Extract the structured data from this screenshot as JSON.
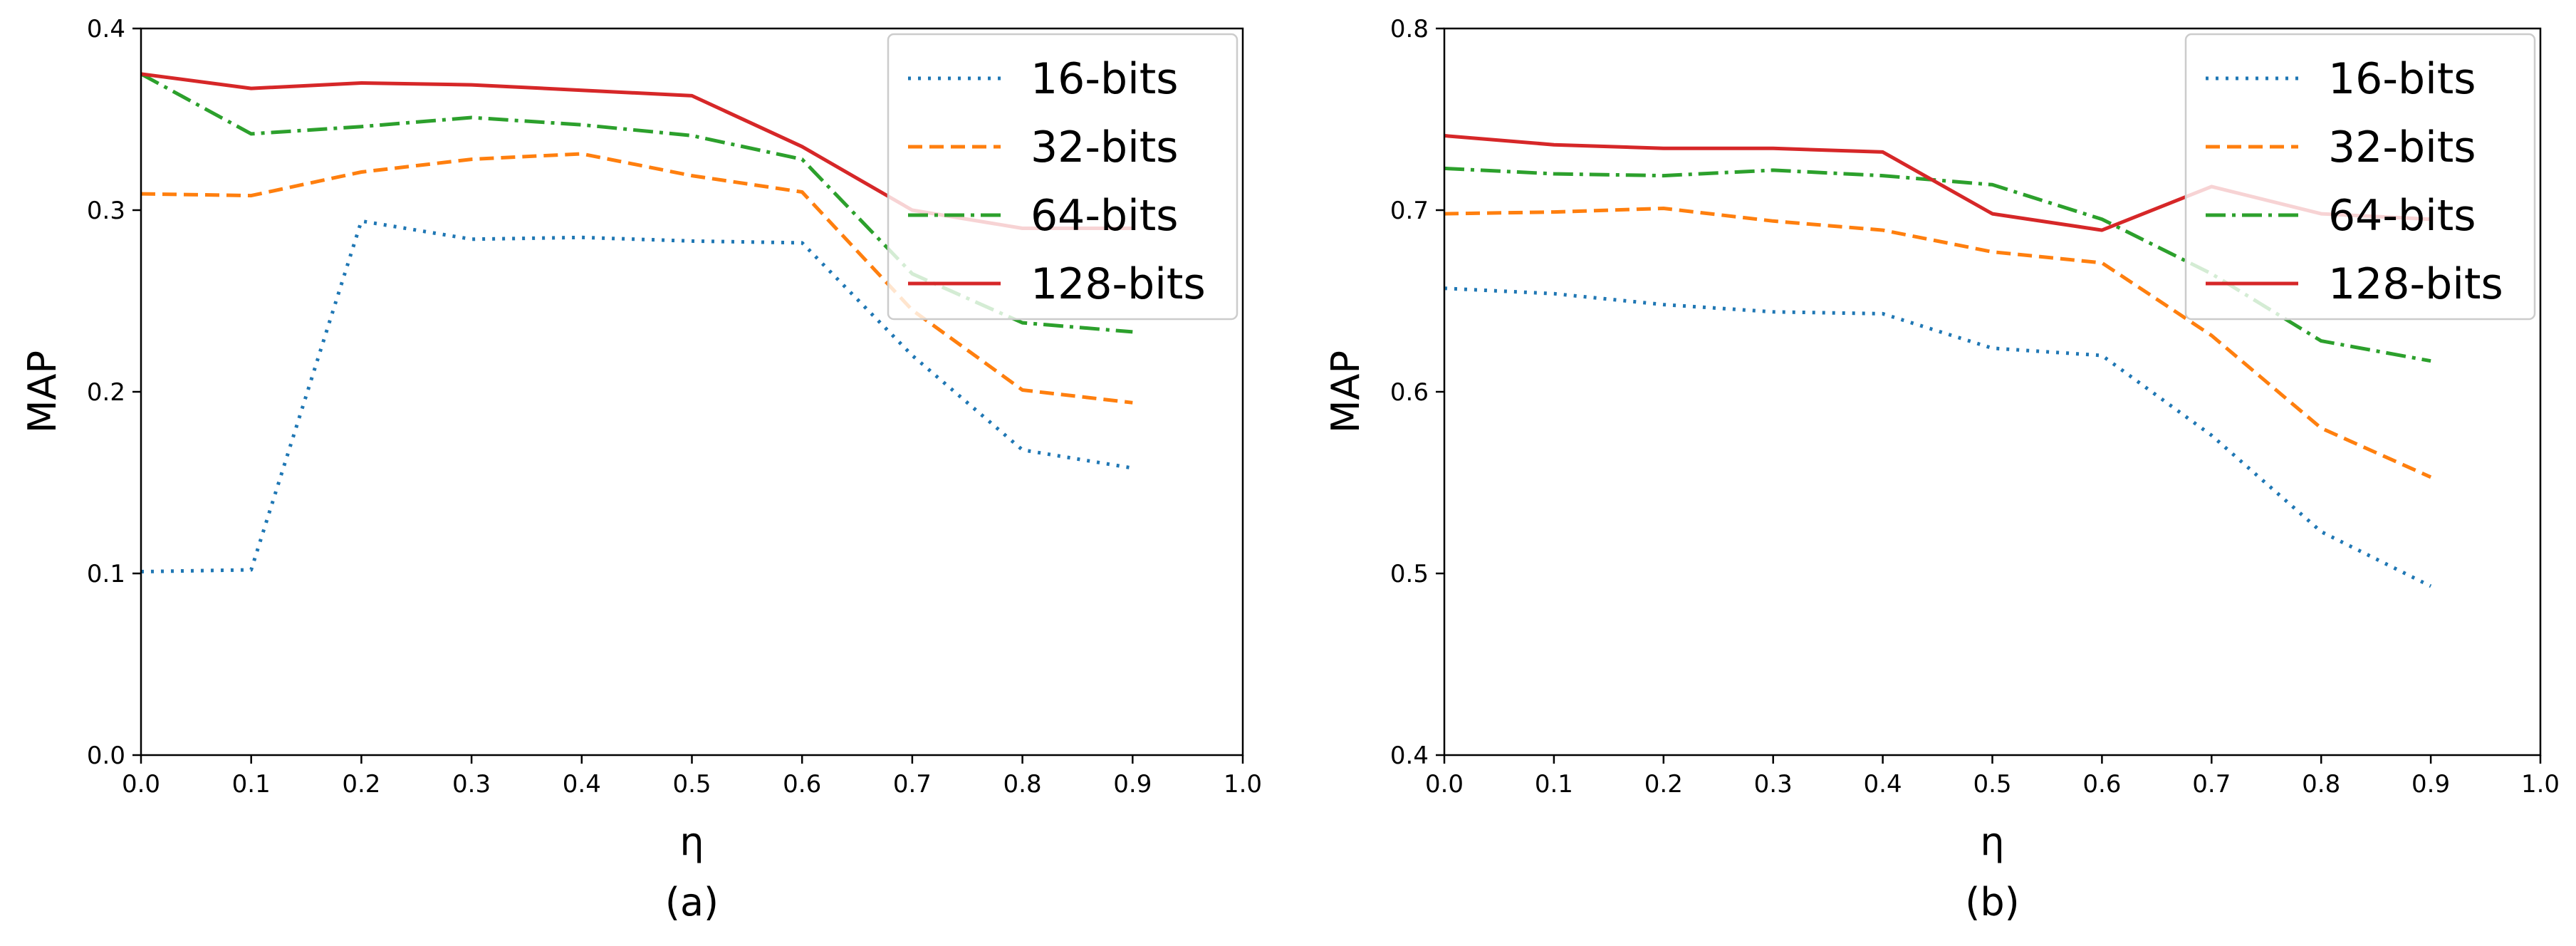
{
  "chart_data": [
    {
      "type": "line",
      "caption": "(a)",
      "xlabel": "η",
      "ylabel": "MAP",
      "xlim": [
        0.0,
        1.0
      ],
      "ylim": [
        0.0,
        0.4
      ],
      "xticks": [
        "0.0",
        "0.1",
        "0.2",
        "0.3",
        "0.4",
        "0.5",
        "0.6",
        "0.7",
        "0.8",
        "0.9",
        "1.0"
      ],
      "yticks": [
        "0.0",
        "0.1",
        "0.2",
        "0.3",
        "0.4"
      ],
      "grid": false,
      "legend_position": "top-right",
      "x": [
        0.0,
        0.1,
        0.2,
        0.3,
        0.4,
        0.5,
        0.6,
        0.7,
        0.8,
        0.9
      ],
      "series": [
        {
          "name": "16-bits",
          "color": "#1f77b4",
          "style": "dotted",
          "values": [
            0.101,
            0.102,
            0.294,
            0.284,
            0.285,
            0.283,
            0.282,
            0.22,
            0.168,
            0.158
          ]
        },
        {
          "name": "32-bits",
          "color": "#ff7f0e",
          "style": "dashed",
          "values": [
            0.309,
            0.308,
            0.321,
            0.328,
            0.331,
            0.319,
            0.31,
            0.245,
            0.201,
            0.194
          ]
        },
        {
          "name": "64-bits",
          "color": "#2ca02c",
          "style": "dashdot",
          "values": [
            0.375,
            0.342,
            0.346,
            0.351,
            0.347,
            0.341,
            0.328,
            0.265,
            0.238,
            0.233
          ]
        },
        {
          "name": "128-bits",
          "color": "#d62728",
          "style": "solid",
          "values": [
            0.375,
            0.367,
            0.37,
            0.369,
            0.366,
            0.363,
            0.335,
            0.3,
            0.29,
            0.29
          ]
        }
      ]
    },
    {
      "type": "line",
      "caption": "(b)",
      "xlabel": "η",
      "ylabel": "MAP",
      "xlim": [
        0.0,
        1.0
      ],
      "ylim": [
        0.4,
        0.8
      ],
      "xticks": [
        "0.0",
        "0.1",
        "0.2",
        "0.3",
        "0.4",
        "0.5",
        "0.6",
        "0.7",
        "0.8",
        "0.9",
        "1.0"
      ],
      "yticks": [
        "0.4",
        "0.5",
        "0.6",
        "0.7",
        "0.8"
      ],
      "grid": false,
      "legend_position": "top-right",
      "x": [
        0.0,
        0.1,
        0.2,
        0.3,
        0.4,
        0.5,
        0.6,
        0.7,
        0.8,
        0.9
      ],
      "series": [
        {
          "name": "16-bits",
          "color": "#1f77b4",
          "style": "dotted",
          "values": [
            0.657,
            0.654,
            0.648,
            0.644,
            0.643,
            0.624,
            0.62,
            0.576,
            0.523,
            0.493
          ]
        },
        {
          "name": "32-bits",
          "color": "#ff7f0e",
          "style": "dashed",
          "values": [
            0.698,
            0.699,
            0.701,
            0.694,
            0.689,
            0.677,
            0.671,
            0.631,
            0.58,
            0.553
          ]
        },
        {
          "name": "64-bits",
          "color": "#2ca02c",
          "style": "dashdot",
          "values": [
            0.723,
            0.72,
            0.719,
            0.722,
            0.719,
            0.714,
            0.695,
            0.665,
            0.628,
            0.617
          ]
        },
        {
          "name": "128-bits",
          "color": "#d62728",
          "style": "solid",
          "values": [
            0.741,
            0.736,
            0.734,
            0.734,
            0.732,
            0.698,
            0.689,
            0.713,
            0.698,
            0.695
          ]
        }
      ]
    }
  ]
}
